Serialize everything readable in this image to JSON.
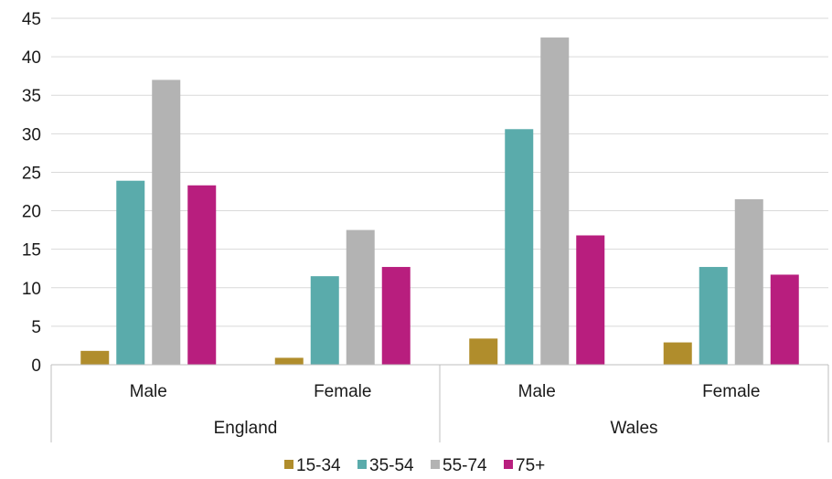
{
  "chart_data": {
    "type": "bar",
    "title": "",
    "xlabel": "",
    "ylabel": "",
    "ylim": [
      0,
      45
    ],
    "yticks": [
      0,
      5,
      10,
      15,
      20,
      25,
      30,
      35,
      40,
      45
    ],
    "grid": true,
    "legend_position": "bottom",
    "groups": [
      {
        "label": "England",
        "categories": [
          "Male",
          "Female"
        ]
      },
      {
        "label": "Wales",
        "categories": [
          "Male",
          "Female"
        ]
      }
    ],
    "categories": [
      "Male",
      "Female",
      "Male",
      "Female"
    ],
    "series": [
      {
        "name": "15-34",
        "color": "#B08D2C",
        "values": [
          1.8,
          0.9,
          3.4,
          2.9
        ]
      },
      {
        "name": "35-54",
        "color": "#5AABAB",
        "values": [
          23.9,
          11.5,
          30.6,
          12.7
        ]
      },
      {
        "name": "55-74",
        "color": "#B3B3B3",
        "values": [
          37.0,
          17.5,
          42.5,
          21.5
        ]
      },
      {
        "name": "75+",
        "color": "#B81E7E",
        "values": [
          23.3,
          12.7,
          16.8,
          11.7
        ]
      }
    ]
  }
}
